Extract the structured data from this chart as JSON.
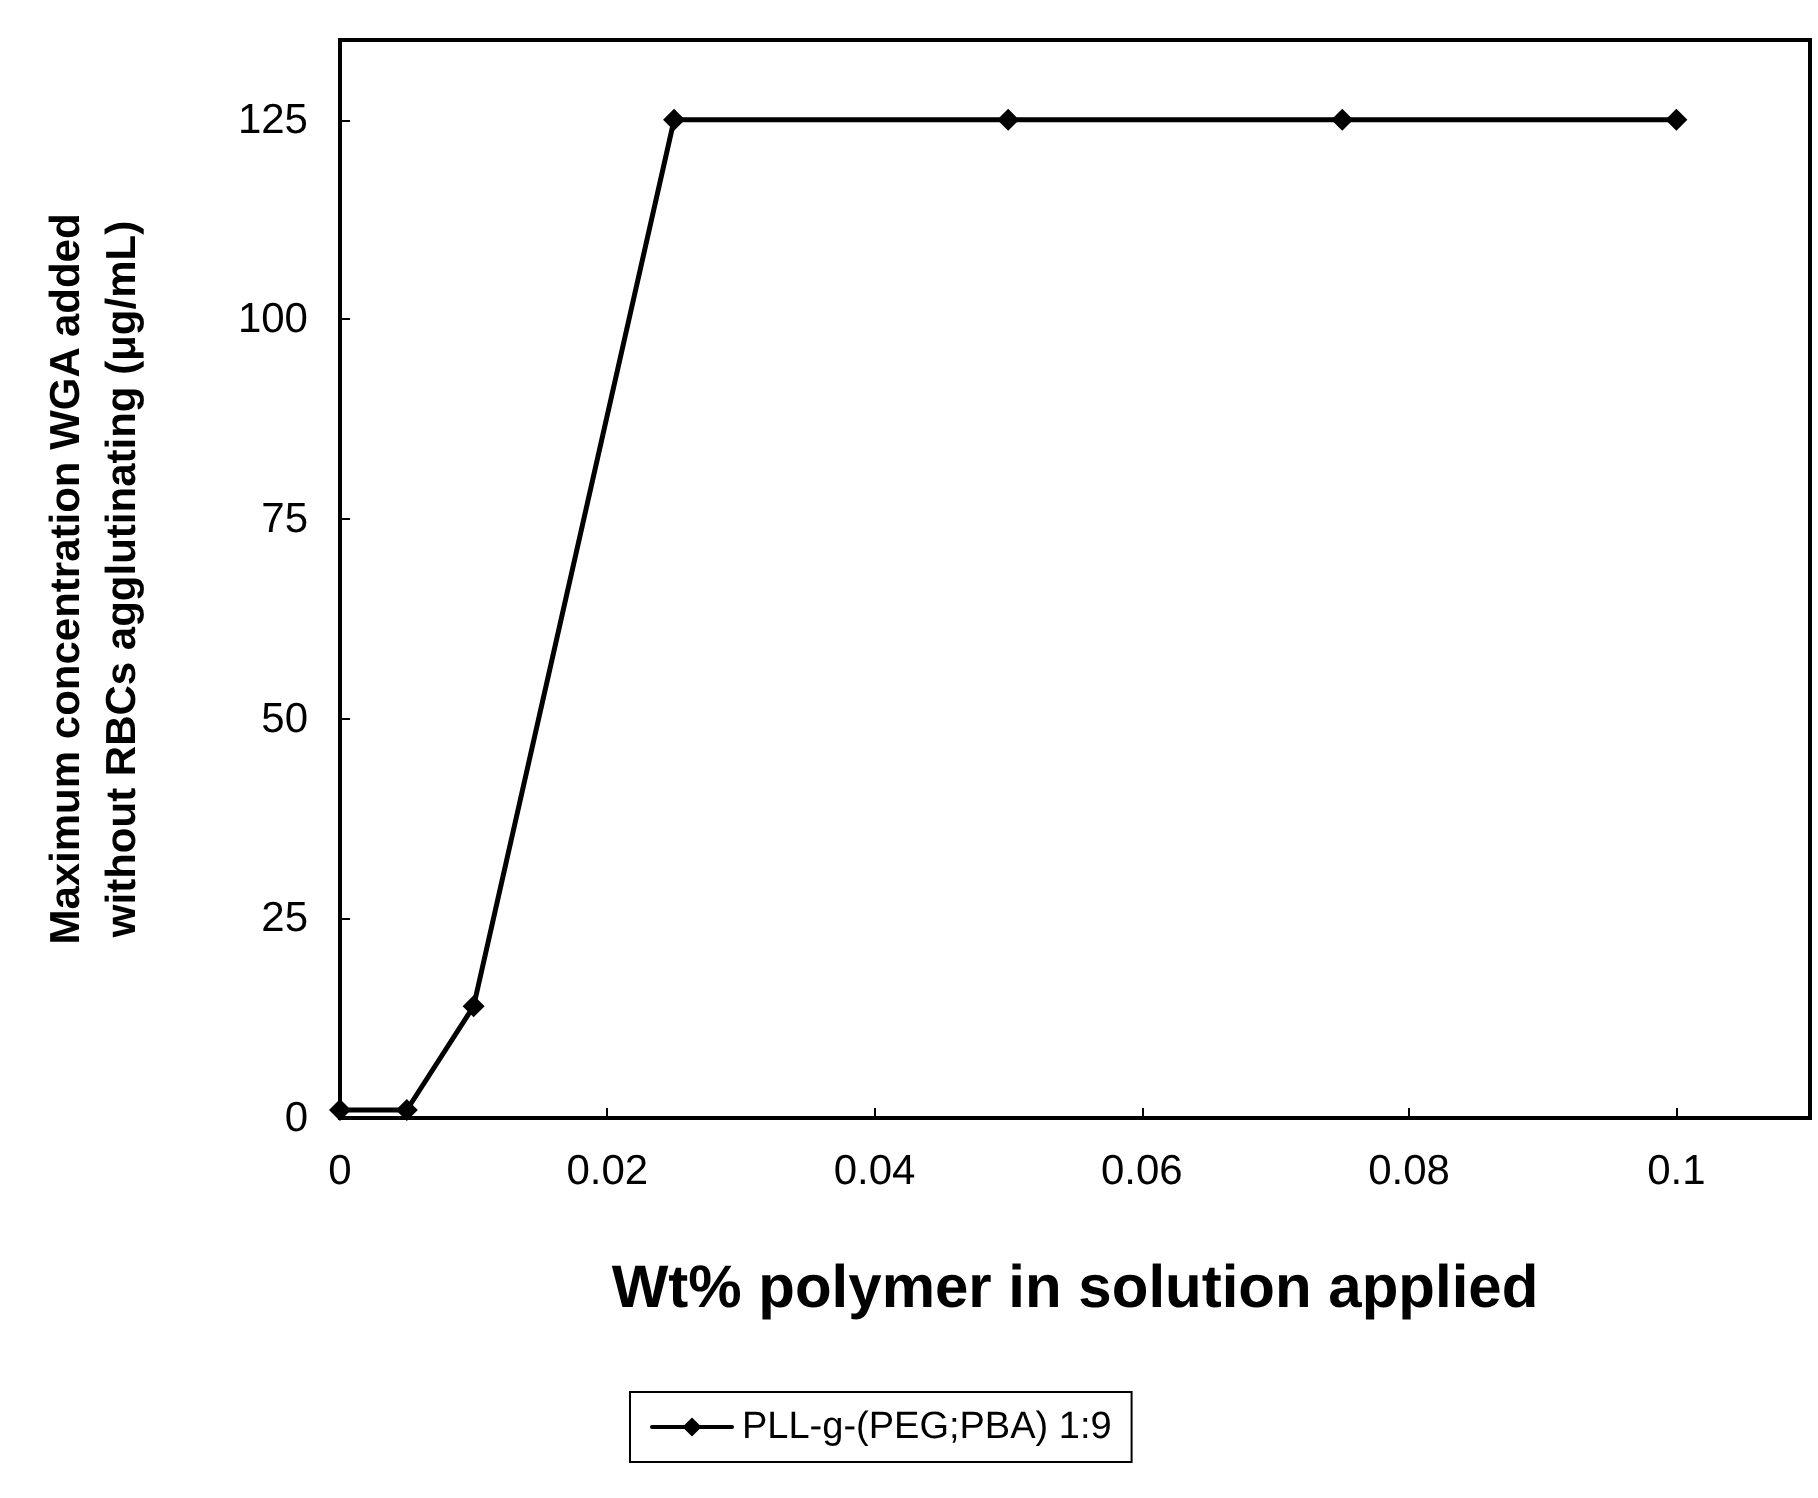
{
  "chart_data": {
    "type": "line",
    "xlabel": "Wt% polymer in solution applied",
    "ylabel": "Maximum concentration WGA added\nwithout RBCs agglutinating (μg/mL)",
    "x": [
      0,
      0.005,
      0.01,
      0.025,
      0.05,
      0.075,
      0.1
    ],
    "series": [
      {
        "name": "PLL-g-(PEG;PBA) 1:9",
        "color": "#000000",
        "values": [
          1,
          1,
          14,
          125,
          125,
          125,
          125
        ]
      }
    ],
    "xlim": [
      0,
      0.11
    ],
    "xticks": [
      0,
      0.02,
      0.04,
      0.06,
      0.08,
      0.1
    ],
    "ylim": [
      0,
      135
    ],
    "yticks": [
      0,
      25,
      50,
      75,
      100,
      125
    ],
    "grid": false,
    "legend": "bottom",
    "marker": "diamond",
    "line_style": "solid"
  }
}
